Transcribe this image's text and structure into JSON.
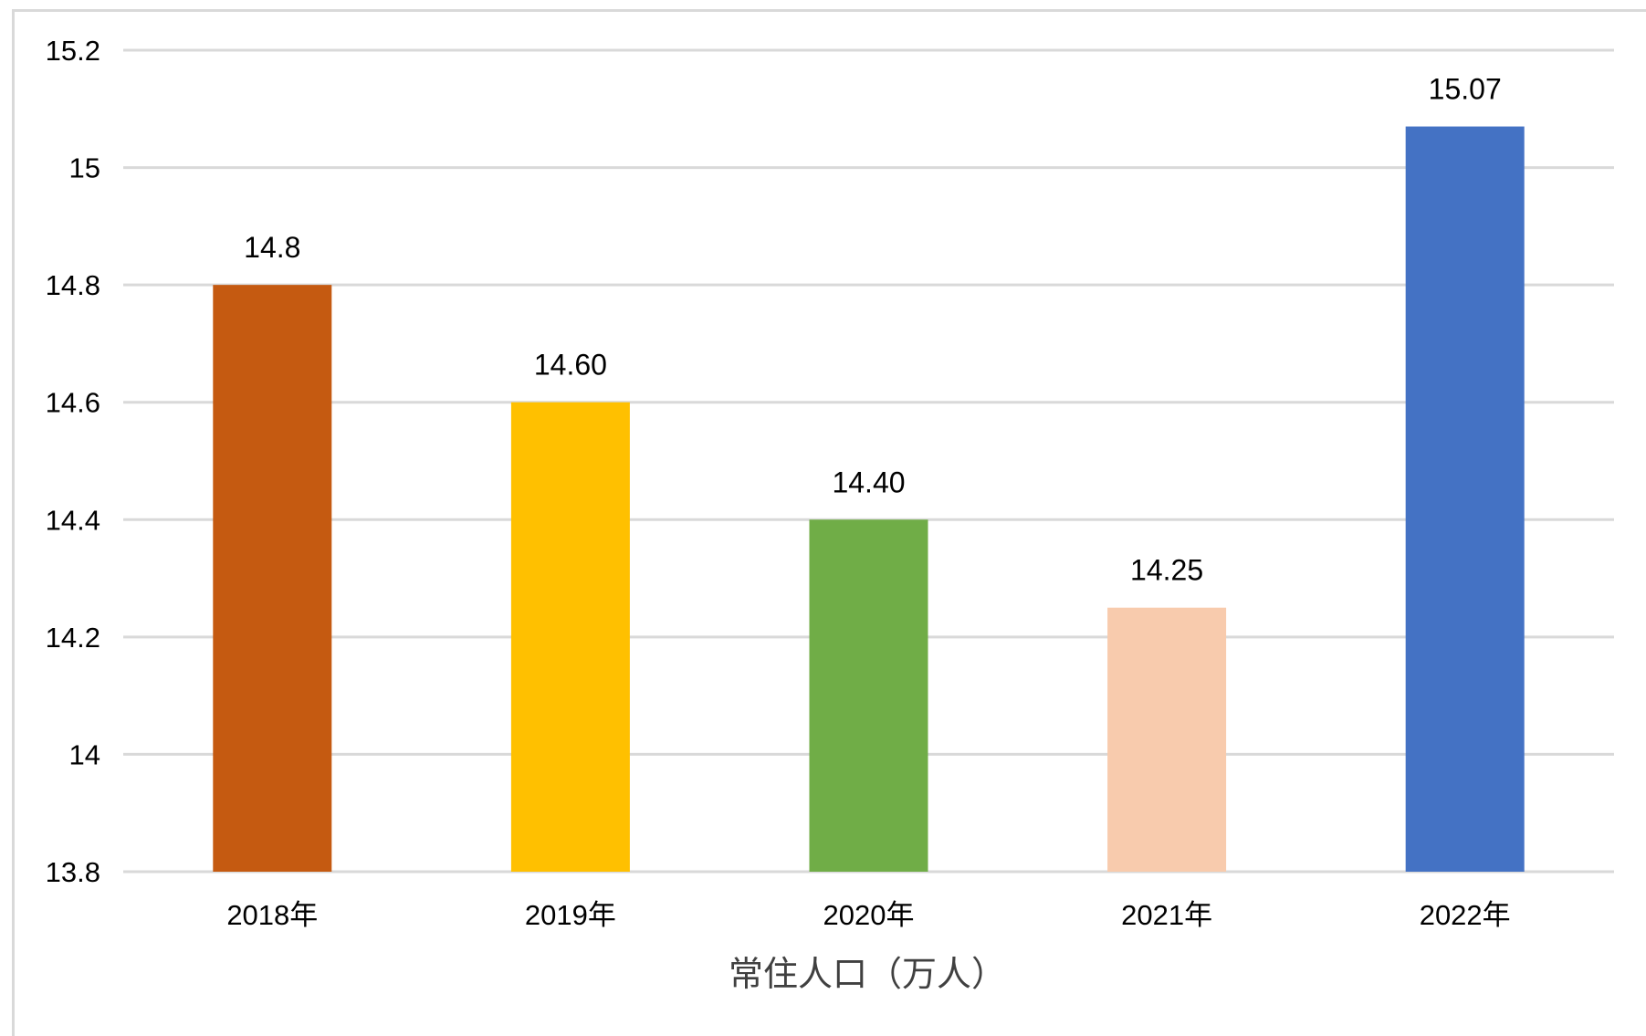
{
  "chart_data": {
    "type": "bar",
    "categories": [
      "2018年",
      "2019年",
      "2020年",
      "2021年",
      "2022年"
    ],
    "values": [
      14.8,
      14.6,
      14.4,
      14.25,
      15.07
    ],
    "data_labels": [
      "14.8",
      "14.60",
      "14.40",
      "14.25",
      "15.07"
    ],
    "bar_colors": [
      "#C55A11",
      "#FFC000",
      "#70AD47",
      "#F8CBAD",
      "#4472C4"
    ],
    "xlabel": "常住人口（万人）",
    "ylabel": "",
    "title": "",
    "ylim": [
      13.8,
      15.2
    ],
    "yticks": [
      13.8,
      14,
      14.2,
      14.4,
      14.6,
      14.8,
      15,
      15.2
    ],
    "ytick_labels": [
      "13.8",
      "14",
      "14.2",
      "14.4",
      "14.6",
      "14.8",
      "15",
      "15.2"
    ],
    "grid": true,
    "legend": "none"
  }
}
